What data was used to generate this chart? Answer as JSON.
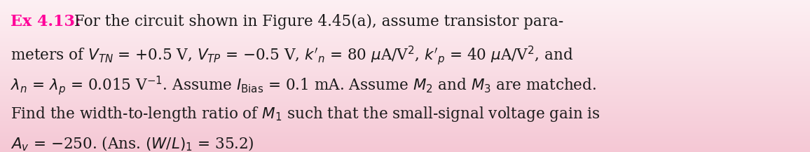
{
  "background_top_color": "#fdf0f3",
  "background_bottom_color": "#f5c8d5",
  "label_color": "#ff0099",
  "text_color": "#1a1a1a",
  "label": "Ex 4.13:",
  "line1_suffix": "For the circuit shown in Figure 4.45(a), assume transistor para-",
  "line2": "meters of $V_{TN}$ = +0.5 V, $V_{TP}$ = −0.5 V, $k'_n$ = 80 $\\mu$A/V$^2$, $k'_p$ = 40 $\\mu$A/V$^2$, and",
  "line3": "$\\lambda_n$ = $\\lambda_p$ = 0.015 V$^{-1}$. Assume $I_{\\mathrm{Bias}}$ = 0.1 mA. Assume $M_2$ and $M_3$ are matched.",
  "line4": "Find the width-to-length ratio of $M_1$ such that the small-signal voltage gain is",
  "line5": "$A_v$ = −250. (Ans. $(W/L)_1$ = 35.2)",
  "figsize": [
    11.56,
    2.17
  ],
  "dpi": 100,
  "font_size": 15.5,
  "label_font_size": 16.0
}
